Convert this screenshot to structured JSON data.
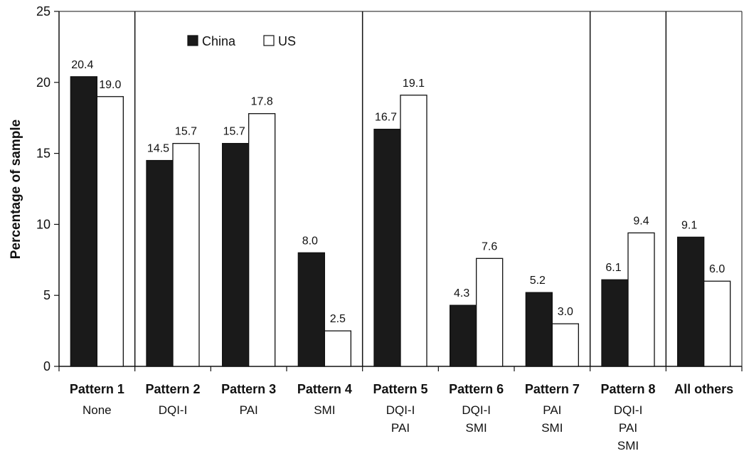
{
  "chart_data": {
    "type": "bar",
    "title": "",
    "xlabel": "",
    "ylabel": "Percentage of sample",
    "ylim": [
      0,
      25
    ],
    "yticks": [
      "0",
      "5",
      "10",
      "15",
      "20",
      "25"
    ],
    "categories": [
      "Pattern 1",
      "Pattern 2",
      "Pattern 3",
      "Pattern 4",
      "Pattern 5",
      "Pattern 6",
      "Pattern 7",
      "Pattern 8",
      "All others"
    ],
    "sublabels": [
      [
        "None"
      ],
      [
        "DQI-I"
      ],
      [
        "PAI"
      ],
      [
        "SMI"
      ],
      [
        "DQI-I",
        "PAI"
      ],
      [
        "DQI-I",
        "SMI"
      ],
      [
        "PAI",
        "SMI"
      ],
      [
        "DQI-I",
        "PAI",
        "SMI"
      ],
      []
    ],
    "series": [
      {
        "name": "China",
        "color": "#1a1a1a",
        "values": [
          20.4,
          14.5,
          15.7,
          8.0,
          16.7,
          4.3,
          5.2,
          6.1,
          9.1
        ],
        "labels": [
          "20.4",
          "14.5",
          "15.7",
          "8.0",
          "16.7",
          "4.3",
          "5.2",
          "6.1",
          "9.1"
        ]
      },
      {
        "name": "US",
        "color": "#ffffff",
        "values": [
          19.0,
          15.7,
          17.8,
          2.5,
          19.1,
          7.6,
          3.0,
          9.4,
          6.0
        ],
        "labels": [
          "19.0",
          "15.7",
          "17.8",
          "2.5",
          "19.1",
          "7.6",
          "3.0",
          "9.4",
          "6.0"
        ]
      }
    ],
    "group_separators_after": [
      1,
      4,
      7,
      8
    ],
    "legend": {
      "position": "top-center",
      "entries": [
        "China",
        "US"
      ]
    },
    "grid": false
  }
}
